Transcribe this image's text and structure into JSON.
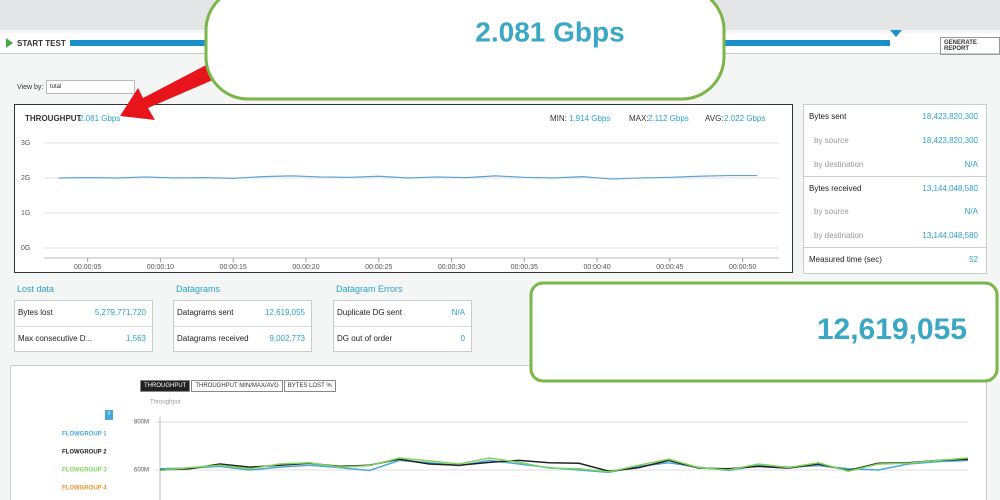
{
  "toolbar": {
    "start": "START TEST",
    "report": "GENERATE REPORT"
  },
  "callouts": [
    "2.081 Gbps",
    "12,619,055"
  ],
  "view_by": {
    "label": "View by:",
    "value": "total"
  },
  "throughput_header": {
    "title": "THROUGHPUT",
    "current": "2.081 Gbps",
    "stats": [
      {
        "label": "MIN:",
        "value": "1.914 Gbps"
      },
      {
        "label": "MAX:",
        "value": "2.112 Gbps"
      },
      {
        "label": "AVG:",
        "value": "2.022 Gbps"
      }
    ]
  },
  "summary": [
    {
      "label": "Bytes sent",
      "value": "18,423,820,300",
      "rows": [
        [
          "by source",
          "18,423,820,300"
        ],
        [
          "by destination",
          "N/A"
        ]
      ]
    },
    {
      "label": "Bytes received",
      "value": "13,144,048,580",
      "rows": [
        [
          "by source",
          "N/A"
        ],
        [
          "by destination",
          "13,144,048,580"
        ]
      ]
    },
    {
      "label": "Measured time (sec)",
      "value": "52"
    }
  ],
  "groups": [
    {
      "title": "Lost data",
      "rows": [
        [
          "Bytes lost",
          "5,279,771,720"
        ],
        [
          "Max consecutive D...",
          "1,563"
        ]
      ]
    },
    {
      "title": "Datagrams",
      "rows": [
        [
          "Datagrams sent",
          "12,619,055"
        ],
        [
          "Datagrams received",
          "9,002,773"
        ]
      ]
    },
    {
      "title": "Datagram Errors",
      "rows": [
        [
          "Duplicate DG sent",
          "N/A"
        ],
        [
          "DG out of order",
          "0"
        ]
      ]
    }
  ],
  "tabs": [
    "THROUGHPUT",
    "THROUGHPUT MIN/MAX/AVG",
    "BYTES LOST %"
  ],
  "chart_data": [
    {
      "type": "line",
      "color": "#5ba3d4",
      "grid": true,
      "x": [
        3,
        5,
        7,
        9,
        11,
        13,
        15,
        17,
        19,
        21,
        23,
        25,
        27,
        29,
        31,
        33,
        35,
        37,
        39,
        41,
        43,
        45,
        47,
        49,
        51
      ],
      "values": [
        2.0,
        2.01,
        2.0,
        2.03,
        2.0,
        2.01,
        1.99,
        2.04,
        2.06,
        2.03,
        2.02,
        2.05,
        2.0,
        2.03,
        2.01,
        2.06,
        2.02,
        2.0,
        2.04,
        1.97,
        2.0,
        2.02,
        2.05,
        2.07,
        2.07
      ],
      "xlim": [
        2,
        52.5
      ],
      "xticks": [
        {
          "value": 5,
          "label": "00:00:05"
        },
        {
          "value": 10,
          "label": "00:00:10"
        },
        {
          "value": 15,
          "label": "00:00:15"
        },
        {
          "value": 20,
          "label": "00:00:20"
        },
        {
          "value": 25,
          "label": "00:00:25"
        },
        {
          "value": 30,
          "label": "00:00:30"
        },
        {
          "value": 35,
          "label": "00:00:35"
        },
        {
          "value": 40,
          "label": "00:00:40"
        },
        {
          "value": 45,
          "label": "00:00:45"
        },
        {
          "value": 50,
          "label": "00:00:50"
        }
      ],
      "ylim": [
        0,
        3
      ],
      "yticks": [
        {
          "value": 0,
          "label": "0G"
        },
        {
          "value": 1,
          "label": "1G"
        },
        {
          "value": 2,
          "label": "2G"
        },
        {
          "value": 3,
          "label": "3G"
        }
      ]
    },
    {
      "type": "line",
      "subtitle": "Throughput",
      "grid": true,
      "ylim": [
        500,
        800
      ],
      "yticks": [
        {
          "value": 600,
          "label": "600M"
        },
        {
          "value": 800,
          "label": "800M"
        }
      ],
      "series": [
        {
          "name": "FLOWGROUP 1",
          "color": "#4aa8d8",
          "values": [
            605,
            608,
            615,
            600,
            612,
            620,
            610,
            598,
            640,
            630,
            618,
            640,
            625,
            610,
            600,
            590,
            615,
            630,
            612,
            598,
            620,
            612,
            618,
            605,
            600,
            625,
            635,
            640
          ]
        },
        {
          "name": "FLOWGROUP 2",
          "color": "#222222",
          "values": [
            600,
            605,
            625,
            612,
            620,
            628,
            615,
            620,
            645,
            625,
            620,
            632,
            640,
            630,
            628,
            595,
            610,
            640,
            608,
            605,
            615,
            608,
            625,
            598,
            628,
            630,
            640,
            645
          ]
        },
        {
          "name": "FLOWGROUP 3",
          "color": "#7fd45a",
          "values": [
            598,
            610,
            620,
            605,
            625,
            630,
            612,
            618,
            650,
            638,
            625,
            650,
            632,
            608,
            605,
            592,
            620,
            645,
            610,
            600,
            625,
            610,
            630,
            595,
            625,
            628,
            640,
            650
          ]
        },
        {
          "name": "FLOWGROUP 4",
          "color": "#f0922e",
          "values": [
            null,
            null,
            null,
            null,
            null,
            null,
            null,
            null,
            null,
            null,
            null,
            null,
            null,
            null,
            null,
            null,
            null,
            null,
            null,
            null,
            null,
            null,
            null,
            null,
            null,
            null,
            null,
            null
          ]
        }
      ]
    }
  ]
}
